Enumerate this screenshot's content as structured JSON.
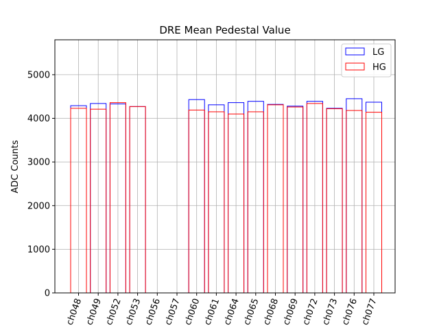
{
  "chart_data": {
    "type": "bar",
    "title": "DRE Mean Pedestal Value",
    "xlabel": "",
    "ylabel": "ADC Counts",
    "ylim": [
      0,
      5800
    ],
    "yticks": [
      0,
      1000,
      2000,
      3000,
      4000,
      5000
    ],
    "ytick_labels": [
      "0",
      "1000",
      "2000",
      "3000",
      "4000",
      "5000"
    ],
    "grid": true,
    "legend_position": "top-right",
    "categories": [
      "ch048",
      "ch049",
      "ch052",
      "ch053",
      "ch056",
      "ch057",
      "ch060",
      "ch061",
      "ch064",
      "ch065",
      "ch068",
      "ch069",
      "ch072",
      "ch073",
      "ch076",
      "ch077"
    ],
    "series": [
      {
        "name": "LG",
        "color": "#0000ff",
        "values": [
          4290,
          4340,
          4330,
          4270,
          0,
          0,
          4430,
          4310,
          4360,
          4390,
          4320,
          4280,
          4390,
          4230,
          4450,
          4370
        ]
      },
      {
        "name": "HG",
        "color": "#ff0000",
        "values": [
          4230,
          4210,
          4360,
          4270,
          0,
          0,
          4190,
          4150,
          4100,
          4150,
          4310,
          4260,
          4340,
          4220,
          4180,
          4140
        ]
      }
    ]
  }
}
